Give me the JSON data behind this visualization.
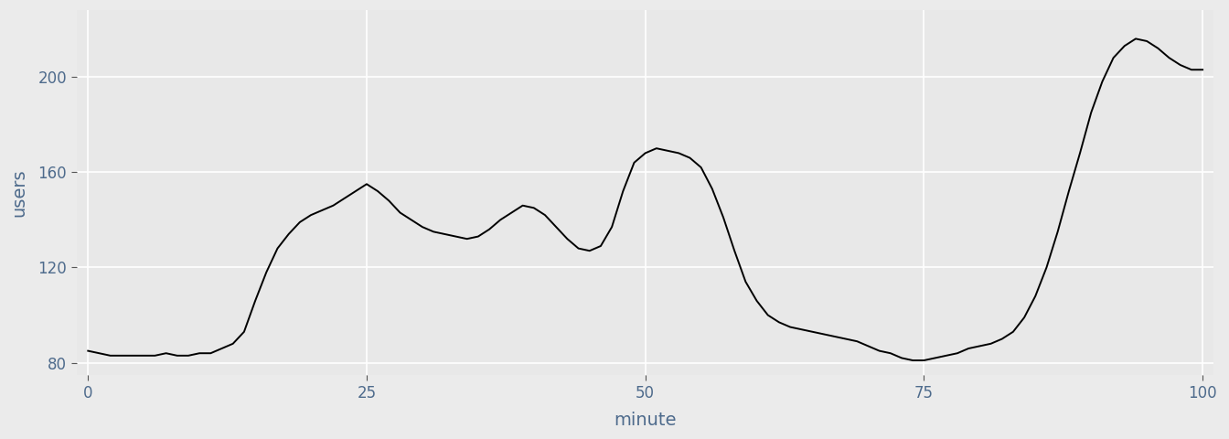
{
  "title": "",
  "xlabel": "minute",
  "ylabel": "users",
  "xlim": [
    -1,
    101
  ],
  "ylim": [
    75,
    228
  ],
  "xticks": [
    0,
    25,
    50,
    75,
    100
  ],
  "yticks": [
    80,
    120,
    160,
    200
  ],
  "line_color": "#000000",
  "line_width": 1.4,
  "background_color": "#EBEBEB",
  "panel_background": "#E8E8E8",
  "grid_color": "#FFFFFF",
  "tick_label_color": "#4E6B8C",
  "axis_label_color": "#4E6B8C",
  "tick_label_size": 12,
  "axis_label_size": 14,
  "x": [
    0,
    1,
    2,
    3,
    4,
    5,
    6,
    7,
    8,
    9,
    10,
    11,
    12,
    13,
    14,
    15,
    16,
    17,
    18,
    19,
    20,
    21,
    22,
    23,
    24,
    25,
    26,
    27,
    28,
    29,
    30,
    31,
    32,
    33,
    34,
    35,
    36,
    37,
    38,
    39,
    40,
    41,
    42,
    43,
    44,
    45,
    46,
    47,
    48,
    49,
    50,
    51,
    52,
    53,
    54,
    55,
    56,
    57,
    58,
    59,
    60,
    61,
    62,
    63,
    64,
    65,
    66,
    67,
    68,
    69,
    70,
    71,
    72,
    73,
    74,
    75,
    76,
    77,
    78,
    79,
    80,
    81,
    82,
    83,
    84,
    85,
    86,
    87,
    88,
    89,
    90,
    91,
    92,
    93,
    94,
    95,
    96,
    97,
    98,
    99,
    100
  ],
  "y": [
    85,
    84,
    83,
    83,
    83,
    83,
    83,
    84,
    83,
    83,
    84,
    84,
    86,
    88,
    93,
    106,
    118,
    128,
    134,
    139,
    142,
    144,
    146,
    149,
    152,
    155,
    152,
    148,
    143,
    140,
    137,
    135,
    134,
    133,
    132,
    133,
    136,
    140,
    143,
    146,
    145,
    142,
    137,
    132,
    128,
    127,
    129,
    137,
    152,
    164,
    168,
    170,
    169,
    168,
    166,
    162,
    153,
    141,
    127,
    114,
    106,
    100,
    97,
    95,
    94,
    93,
    92,
    91,
    90,
    89,
    87,
    85,
    84,
    82,
    81,
    81,
    82,
    83,
    84,
    86,
    87,
    88,
    90,
    93,
    99,
    108,
    120,
    135,
    152,
    168,
    185,
    198,
    208,
    213,
    216,
    215,
    212,
    208,
    205,
    203,
    203
  ]
}
